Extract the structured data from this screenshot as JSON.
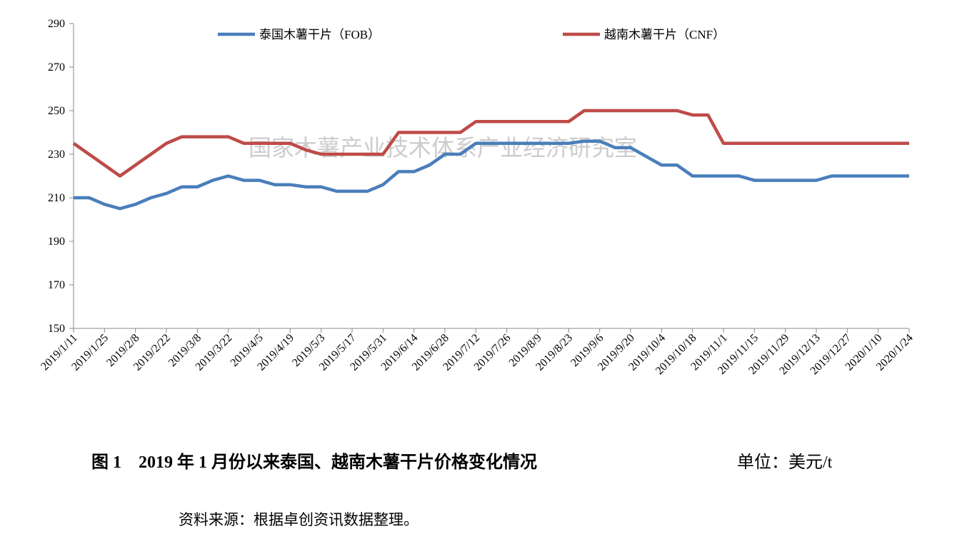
{
  "chart_data": {
    "type": "line",
    "categories": [
      "2019/1/11",
      null,
      "2019/1/25",
      null,
      "2019/2/8",
      null,
      "2019/2/22",
      null,
      "2019/3/8",
      null,
      "2019/3/22",
      null,
      "2019/4/5",
      null,
      "2019/4/19",
      null,
      "2019/5/3",
      null,
      "2019/5/17",
      null,
      "2019/5/31",
      null,
      "2019/6/14",
      null,
      "2019/6/28",
      null,
      "2019/7/12",
      null,
      "2019/7/26",
      null,
      "2019/8/9",
      null,
      "2019/8/23",
      null,
      "2019/9/6",
      null,
      "2019/9/20",
      null,
      "2019/10/4",
      null,
      "2019/10/18",
      null,
      "2019/11/1",
      null,
      "2019/11/15",
      null,
      "2019/11/29",
      null,
      "2019/12/13",
      null,
      "2019/12/27",
      null,
      "2020/1/10",
      null,
      "2020/1/24"
    ],
    "series": [
      {
        "name": "泰国木薯干片（FOB）",
        "color": "#4a7ebb",
        "values": [
          210,
          210,
          207,
          205,
          207,
          210,
          212,
          215,
          215,
          218,
          220,
          218,
          218,
          216,
          216,
          215,
          215,
          213,
          213,
          213,
          216,
          222,
          222,
          225,
          230,
          230,
          235,
          235,
          235,
          235,
          235,
          235,
          235,
          236,
          236,
          233,
          233,
          229,
          225,
          225,
          220,
          220,
          220,
          220,
          218,
          218,
          218,
          218,
          218,
          220,
          220,
          220,
          220,
          220,
          220
        ]
      },
      {
        "name": "越南木薯干片（CNF）",
        "color": "#be4b48",
        "values": [
          235,
          230,
          225,
          220,
          225,
          230,
          235,
          238,
          238,
          238,
          238,
          235,
          235,
          235,
          235,
          232,
          230,
          230,
          230,
          230,
          230,
          240,
          240,
          240,
          240,
          240,
          245,
          245,
          245,
          245,
          245,
          245,
          245,
          250,
          250,
          250,
          250,
          250,
          250,
          250,
          248,
          248,
          235,
          235,
          235,
          235,
          235,
          235,
          235,
          235,
          235,
          235,
          235,
          235,
          235
        ]
      }
    ],
    "ylim": [
      150,
      290
    ],
    "yticks": [
      150,
      170,
      190,
      210,
      230,
      250,
      270,
      290
    ],
    "annotation": "国家木薯产业技术体系产业经济研究室",
    "caption": "图 1　2019 年 1 月份以来泰国、越南木薯干片价格变化情况",
    "unit": "单位：美元/t",
    "source": "资料来源：根据卓创资讯数据整理。"
  }
}
